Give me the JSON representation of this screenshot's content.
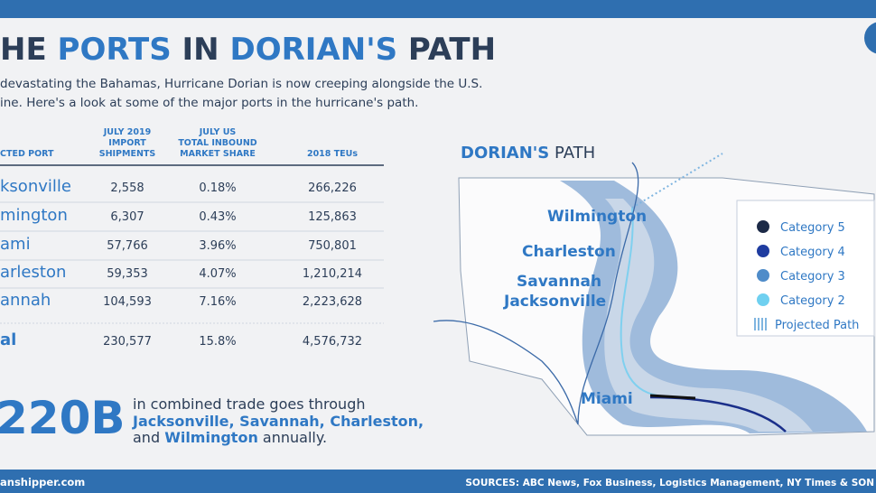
{
  "header": {
    "title": [
      "HE ",
      "PORTS",
      " IN ",
      "DORIAN'S",
      " PATH"
    ],
    "intro": [
      "devastating the Bahamas, Hurricane Dorian is now creeping alongside the U.S.",
      "ine. Here's a look at some of the major ports in the hurricane's path."
    ]
  },
  "table": {
    "headers": [
      [
        "CTED PORT"
      ],
      [
        "JULY 2019",
        "IMPORT",
        "SHIPMENTS"
      ],
      [
        "JULY US",
        "TOTAL INBOUND",
        "MARKET SHARE"
      ],
      [
        "2018 TEUs"
      ]
    ],
    "rows": [
      [
        "ksonville",
        "2,558",
        "0.18%",
        "266,226"
      ],
      [
        "mington",
        "6,307",
        "0.43%",
        "125,863"
      ],
      [
        "ami",
        "57,766",
        "3.96%",
        "750,801"
      ],
      [
        "arleston",
        "59,353",
        "4.07%",
        "1,210,214"
      ],
      [
        "annah",
        "104,593",
        "7.16%",
        "2,223,628"
      ],
      [
        "al",
        "230,577",
        "15.8%",
        "4,576,732"
      ]
    ]
  },
  "callout": {
    "figure": "220B",
    "lines": [
      "in combined trade goes through",
      "Jacksonville, Savannah, Charleston,"
    ],
    "last": [
      "and ",
      "Wilmington",
      " annually."
    ]
  },
  "map": {
    "title": [
      "DORIAN'S",
      " PATH"
    ],
    "cities": [
      "Wilmington",
      "Charleston",
      "Savannah",
      "Jacksonville",
      "Miami"
    ],
    "legend": [
      "Category 5",
      "Category 4",
      "Category 3",
      "Category 2",
      "Projected Path"
    ]
  },
  "footer": {
    "site": "anshipper.com",
    "sources": "SOURCES: ABC News, Fox Business, Logistics Management, NY Times & SON"
  }
}
